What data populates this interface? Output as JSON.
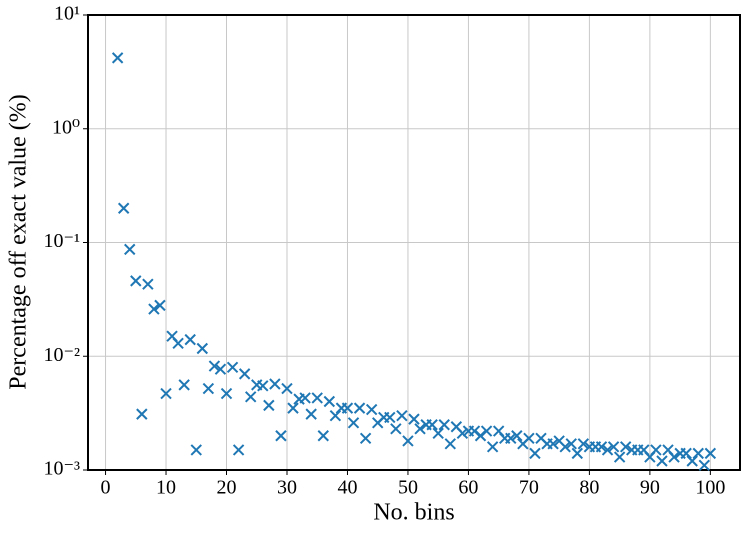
{
  "chart_data": {
    "type": "scatter",
    "xlabel": "No. bins",
    "ylabel": "Percentage off exact value (%)",
    "color": "#1f77b4",
    "log_y": true,
    "grid": true,
    "xlim": [
      -2.9,
      104.9
    ],
    "ylim": [
      0.001,
      10
    ],
    "xticks": [
      0,
      10,
      20,
      30,
      40,
      50,
      60,
      70,
      80,
      90,
      100
    ],
    "yticks": [
      {
        "value": 0.001,
        "label": "10⁻³"
      },
      {
        "value": 0.01,
        "label": "10⁻²"
      },
      {
        "value": 0.1,
        "label": "10⁻¹"
      },
      {
        "value": 1,
        "label": "10⁰"
      },
      {
        "value": 10,
        "label": "10¹"
      }
    ],
    "x": [
      2,
      3,
      4,
      5,
      6,
      7,
      8,
      9,
      10,
      11,
      12,
      13,
      14,
      15,
      16,
      17,
      18,
      19,
      20,
      21,
      22,
      23,
      24,
      25,
      26,
      27,
      28,
      29,
      30,
      31,
      32,
      33,
      34,
      35,
      36,
      37,
      38,
      39,
      40,
      41,
      42,
      43,
      44,
      45,
      46,
      47,
      48,
      49,
      50,
      51,
      52,
      53,
      54,
      55,
      56,
      57,
      58,
      59,
      60,
      61,
      62,
      63,
      64,
      65,
      66,
      67,
      68,
      69,
      70,
      71,
      72,
      73,
      74,
      75,
      76,
      77,
      78,
      79,
      80,
      81,
      82,
      83,
      84,
      85,
      86,
      87,
      88,
      89,
      90,
      91,
      92,
      93,
      94,
      95,
      96,
      97,
      98,
      99,
      100
    ],
    "values": [
      4.2,
      0.2,
      0.087,
      0.046,
      0.0031,
      0.043,
      0.026,
      0.028,
      0.0047,
      0.015,
      0.013,
      0.0056,
      0.014,
      0.0015,
      0.0117,
      0.0052,
      0.0082,
      0.0077,
      0.0047,
      0.008,
      0.0015,
      0.007,
      0.0044,
      0.0056,
      0.0055,
      0.0037,
      0.0057,
      0.002,
      0.0052,
      0.0035,
      0.0042,
      0.0043,
      0.0031,
      0.0043,
      0.002,
      0.004,
      0.003,
      0.0035,
      0.0035,
      0.0026,
      0.0035,
      0.0019,
      0.0034,
      0.0026,
      0.0029,
      0.0029,
      0.0023,
      0.003,
      0.0018,
      0.0028,
      0.0023,
      0.0025,
      0.0025,
      0.0021,
      0.0025,
      0.0017,
      0.0024,
      0.0021,
      0.0022,
      0.0022,
      0.002,
      0.0022,
      0.0016,
      0.0022,
      0.0019,
      0.0019,
      0.002,
      0.0017,
      0.0019,
      0.0014,
      0.0019,
      0.0017,
      0.0017,
      0.0018,
      0.0016,
      0.0017,
      0.0014,
      0.0017,
      0.0016,
      0.0016,
      0.0016,
      0.0015,
      0.0016,
      0.0013,
      0.0016,
      0.0015,
      0.0015,
      0.0015,
      0.0013,
      0.0015,
      0.0012,
      0.0015,
      0.0013,
      0.0014,
      0.0014,
      0.0012,
      0.0014,
      0.0011,
      0.0014
    ]
  }
}
